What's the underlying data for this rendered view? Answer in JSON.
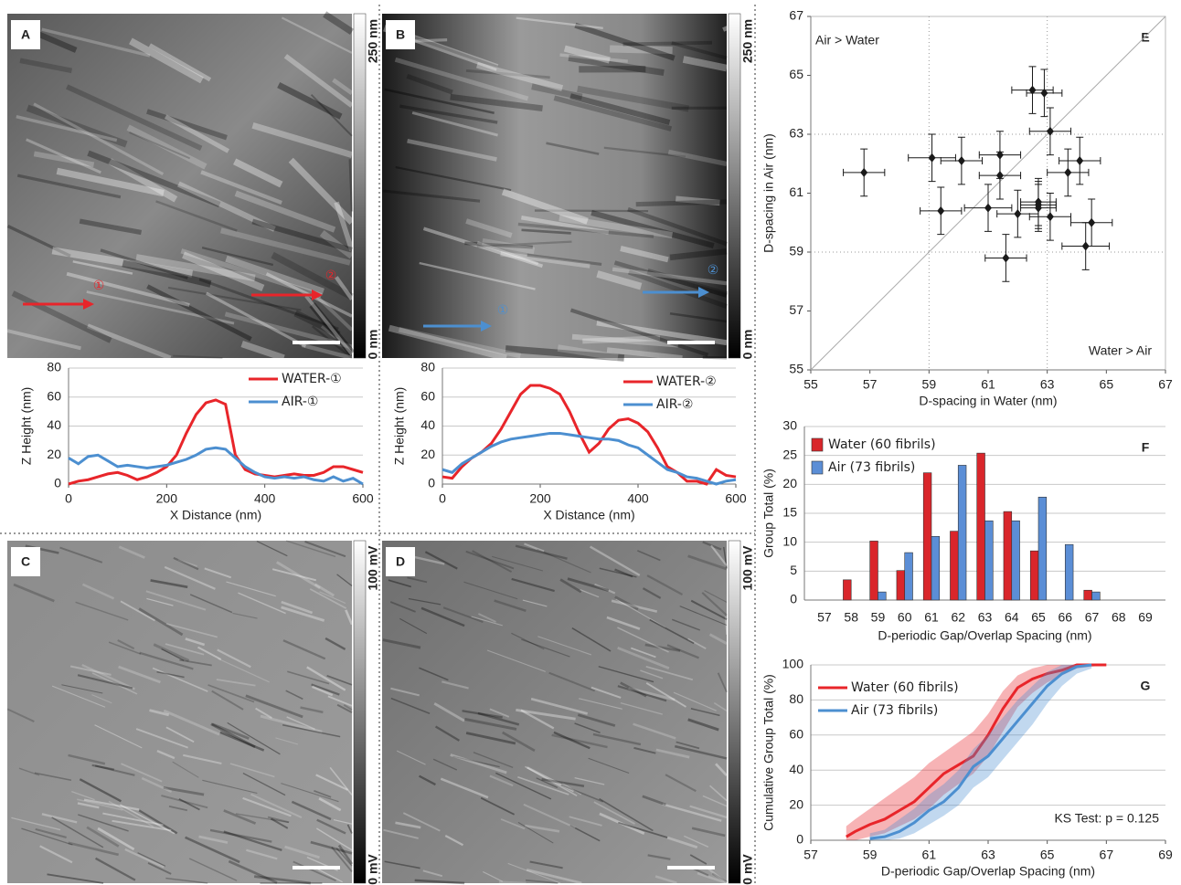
{
  "images": [
    {
      "label": "A",
      "scale_max": "250 nm",
      "scale_min": "0 nm",
      "markers": [
        "①",
        "②"
      ],
      "marker_color": "#e8252a"
    },
    {
      "label": "B",
      "scale_max": "250 nm",
      "scale_min": "0 nm",
      "markers": [
        "①",
        "②"
      ],
      "marker_color": "#4c8fd0"
    },
    {
      "label": "C",
      "scale_max": "100 mV",
      "scale_min": "0 mV"
    },
    {
      "label": "D",
      "scale_max": "100 mV",
      "scale_min": "0 mV"
    }
  ],
  "chart_data": [
    {
      "type": "line",
      "xlabel": "X Distance (nm)",
      "ylabel": "Z Height (nm)",
      "x": [
        0,
        20,
        40,
        60,
        80,
        100,
        120,
        140,
        160,
        180,
        200,
        220,
        240,
        260,
        280,
        300,
        320,
        340,
        360,
        380,
        400,
        420,
        440,
        460,
        480,
        500,
        520,
        540,
        560,
        580,
        600
      ],
      "series": [
        {
          "name": "WATER-①",
          "color": "#e8252a",
          "values": [
            0,
            2,
            3,
            5,
            7,
            8,
            6,
            3,
            5,
            8,
            12,
            20,
            35,
            48,
            56,
            58,
            55,
            20,
            10,
            7,
            6,
            5,
            6,
            7,
            6,
            6,
            8,
            12,
            12,
            10,
            8
          ]
        },
        {
          "name": "AIR-①",
          "color": "#4c8fd0",
          "values": [
            18,
            14,
            19,
            20,
            16,
            12,
            13,
            12,
            11,
            12,
            13,
            15,
            17,
            20,
            24,
            25,
            24,
            18,
            12,
            8,
            5,
            4,
            5,
            4,
            5,
            3,
            2,
            5,
            2,
            4,
            0
          ]
        }
      ],
      "xlim": [
        0,
        600
      ],
      "xticks": [
        0,
        200,
        400,
        600
      ],
      "ylim": [
        0,
        80
      ],
      "yticks": [
        0,
        20,
        40,
        60,
        80
      ],
      "grid": true,
      "legend": "upper right"
    },
    {
      "type": "line",
      "xlabel": "X Distance (nm)",
      "ylabel": "Z Height (nm)",
      "x": [
        0,
        20,
        40,
        60,
        80,
        100,
        120,
        140,
        160,
        180,
        200,
        220,
        240,
        260,
        280,
        300,
        320,
        340,
        360,
        380,
        400,
        420,
        440,
        460,
        480,
        500,
        520,
        540,
        560,
        580,
        600
      ],
      "series": [
        {
          "name": "WATER-②",
          "color": "#e8252a",
          "values": [
            5,
            4,
            12,
            18,
            22,
            28,
            38,
            50,
            62,
            68,
            68,
            66,
            62,
            50,
            35,
            22,
            28,
            38,
            44,
            45,
            42,
            36,
            25,
            12,
            8,
            2,
            2,
            0,
            10,
            6,
            5
          ]
        },
        {
          "name": "AIR-②",
          "color": "#4c8fd0",
          "values": [
            10,
            8,
            14,
            18,
            22,
            26,
            29,
            31,
            32,
            33,
            34,
            35,
            35,
            34,
            33,
            32,
            31,
            31,
            30,
            27,
            25,
            20,
            15,
            10,
            8,
            5,
            4,
            2,
            0,
            2,
            3
          ]
        }
      ],
      "xlim": [
        0,
        600
      ],
      "xticks": [
        0,
        200,
        400,
        600
      ],
      "ylim": [
        0,
        80
      ],
      "yticks": [
        0,
        20,
        40,
        60,
        80
      ],
      "grid": true,
      "legend": "upper right"
    },
    {
      "type": "scatter",
      "label": "E",
      "xlabel": "D-spacing in Water (nm)",
      "ylabel": "D-spacing in Air (nm)",
      "x": [
        56.8,
        59.1,
        59.4,
        60.1,
        61.0,
        61.4,
        61.4,
        61.6,
        62.0,
        62.5,
        62.9,
        63.1,
        62.7,
        62.7,
        63.1,
        63.7,
        64.1,
        64.5,
        64.3,
        62.7
      ],
      "values": [
        61.7,
        62.2,
        60.4,
        62.1,
        60.5,
        62.3,
        61.6,
        58.8,
        60.3,
        64.5,
        64.4,
        63.1,
        60.7,
        60.5,
        60.2,
        61.7,
        62.1,
        60.0,
        59.2,
        60.6
      ],
      "xerr": [
        0.7,
        0.8,
        0.7,
        0.7,
        0.8,
        0.7,
        0.7,
        0.7,
        0.7,
        0.7,
        0.6,
        0.7,
        0.6,
        0.6,
        0.7,
        0.7,
        0.7,
        0.7,
        0.8,
        0.6
      ],
      "yerr": [
        0.8,
        0.8,
        0.8,
        0.8,
        0.8,
        0.8,
        0.8,
        0.8,
        0.8,
        0.8,
        0.8,
        0.8,
        0.8,
        0.8,
        0.8,
        0.8,
        0.8,
        0.8,
        0.8,
        0.8
      ],
      "color": "#1a1a1a",
      "xlim": [
        55,
        67
      ],
      "xticks": [
        55,
        57,
        59,
        61,
        63,
        65,
        67
      ],
      "ylim": [
        55,
        67
      ],
      "yticks": [
        55,
        57,
        59,
        61,
        63,
        65,
        67
      ],
      "xgrid": [
        59,
        63
      ],
      "ygrid": [
        59,
        63
      ],
      "diagonal": true,
      "annotations": [
        "Air > Water",
        "Water > Air"
      ]
    },
    {
      "type": "bar",
      "label": "F",
      "xlabel": "D-periodic Gap/Overlap Spacing (nm)",
      "ylabel": "Group Total (%)",
      "categories": [
        "57",
        "58",
        "59",
        "60",
        "61",
        "62",
        "63",
        "64",
        "65",
        "66",
        "67",
        "68",
        "69"
      ],
      "series": [
        {
          "name": "Water (60 fibrils)",
          "color": "#d9262b",
          "values": [
            0,
            3.5,
            10.2,
            5.1,
            22,
            11.9,
            25.4,
            15.3,
            8.5,
            0,
            1.7,
            0,
            0
          ]
        },
        {
          "name": "Air (73 fibrils)",
          "color": "#5b8ed6",
          "values": [
            0,
            0,
            1.4,
            8.2,
            11,
            23.3,
            13.7,
            13.7,
            17.8,
            9.6,
            1.4,
            0,
            0
          ]
        }
      ],
      "ylim": [
        0,
        30
      ],
      "yticks": [
        0,
        5,
        10,
        15,
        20,
        25,
        30
      ],
      "grid": true,
      "legend": "upper left"
    },
    {
      "type": "line",
      "label": "G",
      "xlabel": "D-periodic Gap/Overlap Spacing (nm)",
      "ylabel": "Cumulative Group Total (%)",
      "series": [
        {
          "name": "Water (60 fibrils)",
          "color": "#e8252a",
          "x": [
            58.2,
            58.5,
            59,
            59.5,
            60,
            60.5,
            61,
            61.5,
            62,
            62.5,
            63,
            63.5,
            64,
            64.5,
            65,
            65.5,
            66,
            67
          ],
          "values": [
            2,
            5,
            9,
            12,
            17,
            22,
            30,
            38,
            43,
            48,
            60,
            75,
            87,
            92,
            95,
            97,
            100,
            100
          ],
          "lower": [
            0,
            0,
            2,
            4,
            8,
            12,
            18,
            26,
            32,
            38,
            48,
            62,
            76,
            84,
            90,
            94,
            98,
            100
          ],
          "upper": [
            8,
            12,
            18,
            24,
            30,
            36,
            44,
            50,
            56,
            62,
            72,
            85,
            94,
            98,
            100,
            100,
            100,
            100
          ]
        },
        {
          "name": "Air (73 fibrils)",
          "color": "#4c8fd0",
          "x": [
            59,
            59.5,
            60,
            60.5,
            61,
            61.5,
            62,
            62.5,
            63,
            63.5,
            64,
            64.5,
            65,
            65.5,
            66,
            66.5
          ],
          "values": [
            1,
            2,
            5,
            10,
            17,
            22,
            30,
            42,
            48,
            58,
            68,
            78,
            88,
            95,
            99,
            100
          ],
          "lower": [
            0,
            0,
            1,
            4,
            9,
            14,
            20,
            30,
            36,
            46,
            56,
            66,
            78,
            88,
            95,
            98
          ],
          "upper": [
            4,
            6,
            12,
            18,
            26,
            32,
            40,
            52,
            60,
            70,
            80,
            88,
            96,
            100,
            100,
            100
          ]
        }
      ],
      "xlim": [
        57,
        69
      ],
      "xticks": [
        57,
        59,
        61,
        63,
        65,
        67,
        69
      ],
      "ylim": [
        0,
        100
      ],
      "yticks": [
        0,
        20,
        40,
        60,
        80,
        100
      ],
      "grid": true,
      "legend": "upper left",
      "annotations": [
        "KS Test: p = 0.125"
      ]
    }
  ]
}
